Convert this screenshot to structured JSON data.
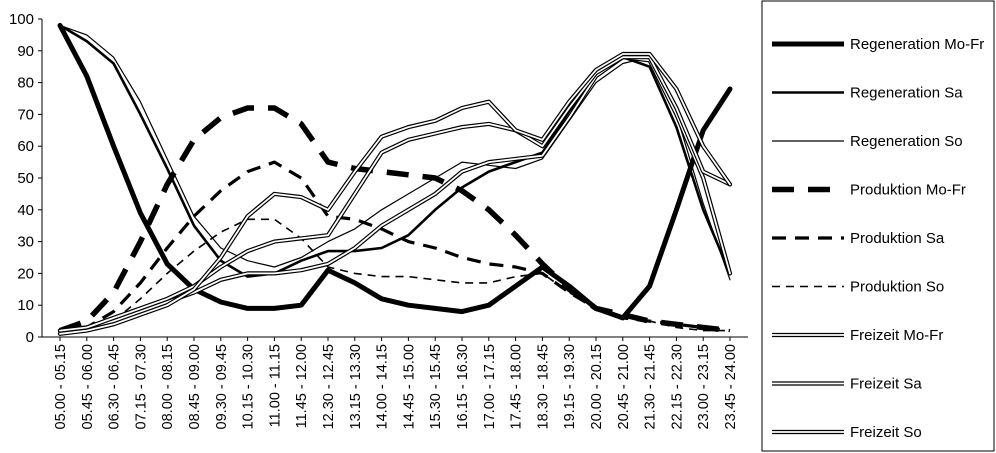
{
  "chart_data": {
    "type": "line",
    "title": "",
    "xlabel": "",
    "ylabel": "",
    "ylim": [
      0,
      100
    ],
    "yticks": [
      0,
      10,
      20,
      30,
      40,
      50,
      60,
      70,
      80,
      90,
      100
    ],
    "grid": false,
    "legend_position": "right",
    "x": [
      "05.00 - 05.15",
      "05.45 - 06.00",
      "06.30 - 06.45",
      "07.15 - 07.30",
      "08.00 - 08.15",
      "08.45 - 09.00",
      "09.30 - 09.45",
      "10.15 - 10.30",
      "11.00 - 11.15",
      "11.45 - 12.00",
      "12.30 - 12.45",
      "13.15 - 13.30",
      "14.00 - 14.15",
      "14.45 - 15.00",
      "15.30 - 15.45",
      "16.15 - 16.30",
      "17.00 - 17.15",
      "17.45 - 18.00",
      "18.30 - 18.45",
      "19.15 - 19.30",
      "20.00 - 20.15",
      "20.45 - 21.00",
      "21.30 - 21.45",
      "22.15 - 22.30",
      "23.00 - 23.15",
      "23.45 - 24.00"
    ],
    "series": [
      {
        "name": "Regeneration Mo-Fr",
        "style": "solid-heavy",
        "values": [
          98,
          82,
          60,
          39,
          23,
          15,
          11,
          9,
          9,
          10,
          21,
          17,
          12,
          10,
          9,
          8,
          10,
          16,
          22,
          16,
          9,
          6,
          16,
          40,
          65,
          78
        ]
      },
      {
        "name": "Regeneration Sa",
        "style": "solid-medium",
        "values": [
          98,
          93,
          86,
          70,
          53,
          35,
          24,
          19,
          20,
          24,
          27,
          27,
          28,
          32,
          40,
          47,
          52,
          55,
          58,
          71,
          82,
          88,
          85,
          66,
          40,
          20
        ]
      },
      {
        "name": "Regeneration  So",
        "style": "solid-thin",
        "values": [
          98,
          95,
          88,
          74,
          56,
          38,
          28,
          24,
          22,
          25,
          30,
          34,
          40,
          45,
          50,
          55,
          54,
          53,
          56,
          68,
          80,
          86,
          88,
          70,
          42,
          18
        ]
      },
      {
        "name": "Produktion Mo-Fr",
        "style": "dash-heavy",
        "values": [
          2,
          5,
          14,
          30,
          48,
          62,
          69,
          72,
          72,
          67,
          55,
          53,
          52,
          51,
          50,
          46,
          40,
          32,
          23,
          15,
          9,
          7,
          5,
          4,
          3,
          2
        ]
      },
      {
        "name": "Produktion Sa",
        "style": "dash-medium",
        "values": [
          1,
          3,
          8,
          17,
          28,
          38,
          46,
          52,
          55,
          50,
          38,
          37,
          34,
          30,
          28,
          25,
          23,
          22,
          20,
          14,
          9,
          6,
          5,
          4,
          3,
          2
        ]
      },
      {
        "name": "Produktion So",
        "style": "dash-thin",
        "values": [
          1,
          2,
          5,
          12,
          20,
          27,
          33,
          37,
          37,
          31,
          22,
          20,
          19,
          19,
          18,
          17,
          17,
          19,
          20,
          14,
          9,
          6,
          5,
          3,
          2,
          2
        ]
      },
      {
        "name": "Freizeit Mo-Fr",
        "style": "double",
        "values": [
          2,
          3,
          5,
          8,
          11,
          14,
          18,
          20,
          20,
          21,
          23,
          28,
          35,
          40,
          45,
          52,
          55,
          56,
          57,
          69,
          82,
          88,
          87,
          70,
          50,
          20
        ]
      },
      {
        "name": "Freizeit Sa",
        "style": "double",
        "values": [
          2,
          3,
          6,
          9,
          12,
          16,
          22,
          27,
          30,
          31,
          32,
          45,
          58,
          62,
          64,
          66,
          67,
          65,
          60,
          72,
          83,
          88,
          88,
          72,
          52,
          48
        ]
      },
      {
        "name": "Freizeit So",
        "style": "double",
        "values": [
          1,
          2,
          4,
          7,
          10,
          15,
          25,
          38,
          45,
          44,
          40,
          52,
          63,
          66,
          68,
          72,
          74,
          65,
          62,
          74,
          84,
          89,
          89,
          78,
          60,
          48
        ]
      }
    ]
  }
}
